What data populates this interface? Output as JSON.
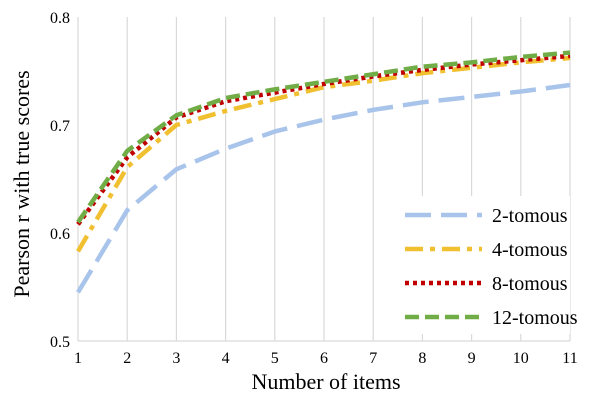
{
  "chart_data": {
    "type": "line",
    "xlabel": "Number of items",
    "ylabel": "Pearson r with true scores",
    "x": [
      1,
      2,
      3,
      4,
      5,
      6,
      7,
      8,
      9,
      10,
      11
    ],
    "xlim": [
      1,
      11
    ],
    "ylim": [
      0.5,
      0.8
    ],
    "x_ticks": [
      "1",
      "2",
      "3",
      "4",
      "5",
      "6",
      "7",
      "8",
      "9",
      "10",
      "11"
    ],
    "y_ticks": [
      "0.5",
      "0.6",
      "0.7",
      "0.8"
    ],
    "grid": "vertical",
    "legend_position": "bottom-right",
    "series": [
      {
        "name": "2-tomous",
        "color": "#a9c4eb",
        "style": "long-dash",
        "values": [
          0.545,
          0.621,
          0.659,
          0.678,
          0.694,
          0.705,
          0.714,
          0.721,
          0.726,
          0.731,
          0.737
        ]
      },
      {
        "name": "4-tomous",
        "color": "#f0c030",
        "style": "dash-dot",
        "values": [
          0.583,
          0.661,
          0.7,
          0.713,
          0.724,
          0.735,
          0.741,
          0.748,
          0.753,
          0.758,
          0.762
        ]
      },
      {
        "name": "8-tomous",
        "color": "#c00000",
        "style": "dotted",
        "values": [
          0.608,
          0.67,
          0.707,
          0.722,
          0.73,
          0.738,
          0.745,
          0.751,
          0.756,
          0.76,
          0.764
        ]
      },
      {
        "name": "12-tomous",
        "color": "#70ad47",
        "style": "dashed",
        "values": [
          0.61,
          0.676,
          0.709,
          0.725,
          0.733,
          0.74,
          0.747,
          0.754,
          0.758,
          0.763,
          0.767
        ]
      }
    ]
  }
}
